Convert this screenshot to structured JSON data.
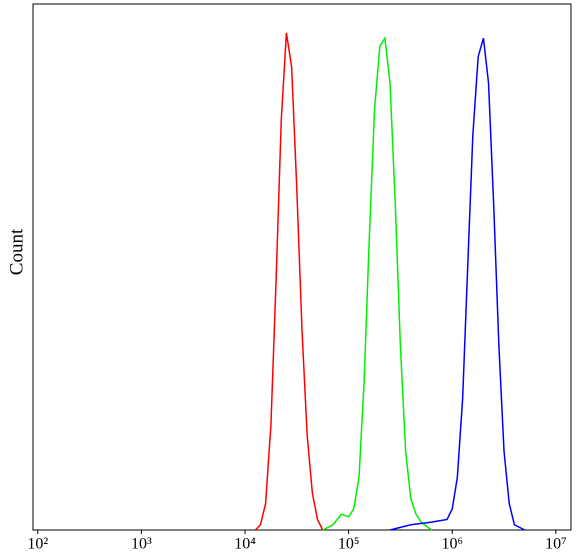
{
  "chart_data": {
    "type": "line",
    "y_label": "Count",
    "x_log": true,
    "xlim": [
      90,
      14000000
    ],
    "ylim": [
      0,
      100
    ],
    "xticks": [
      {
        "value": 100,
        "label": "10²"
      },
      {
        "value": 1000,
        "label": "10³"
      },
      {
        "value": 10000,
        "label": "10⁴"
      },
      {
        "value": 100000,
        "label": "10⁵"
      },
      {
        "value": 1000000,
        "label": "10⁶"
      },
      {
        "value": 10000000,
        "label": "10⁷"
      }
    ],
    "series": [
      {
        "color": "#ff0000",
        "x": [
          12600,
          14100,
          15800,
          17800,
          20000,
          22400,
          25100,
          28200,
          31600,
          35500,
          39800,
          44700,
          50100,
          56200
        ],
        "values": [
          0,
          1,
          5,
          20,
          48,
          78,
          94.5,
          88,
          65,
          38,
          18,
          7,
          2,
          0
        ]
      },
      {
        "color": "#00ee00",
        "x": [
          56200,
          70800,
          85100,
          100000,
          112000,
          126000,
          141000,
          158000,
          178000,
          200000,
          224000,
          251000,
          282000,
          316000,
          355000,
          398000,
          447000,
          501000,
          631000
        ],
        "values": [
          0,
          1,
          3,
          2.5,
          4,
          10,
          28,
          55,
          80,
          92,
          93.5,
          85,
          62,
          35,
          15,
          6,
          3,
          1.5,
          0
        ]
      },
      {
        "color": "#0000ff",
        "x": [
          251000,
          398000,
          631000,
          891000,
          1000000,
          1120000,
          1260000,
          1410000,
          1580000,
          1780000,
          2000000,
          2240000,
          2510000,
          2820000,
          3160000,
          3550000,
          3980000,
          5010000
        ],
        "values": [
          0,
          1,
          1.5,
          2,
          4,
          10,
          25,
          50,
          75,
          90,
          93.5,
          85,
          62,
          35,
          15,
          5,
          1,
          0
        ]
      }
    ]
  }
}
